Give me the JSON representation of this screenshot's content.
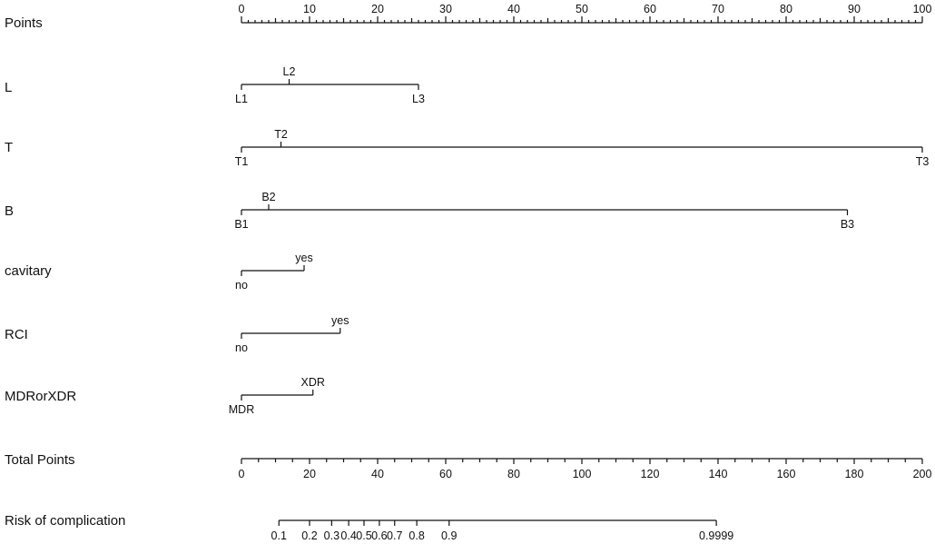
{
  "chart_data": {
    "type": "nomogram",
    "points_axis": {
      "label": "Points",
      "min": 0,
      "max": 100,
      "major_ticks": [
        0,
        10,
        20,
        30,
        40,
        50,
        60,
        70,
        80,
        90,
        100
      ],
      "minor_step": 1
    },
    "variables": [
      {
        "label": "L",
        "levels": [
          {
            "name": "L1",
            "points": 0
          },
          {
            "name": "L2",
            "points": 7
          },
          {
            "name": "L3",
            "points": 26
          }
        ]
      },
      {
        "label": "T",
        "levels": [
          {
            "name": "T1",
            "points": 0
          },
          {
            "name": "T2",
            "points": 5.8
          },
          {
            "name": "T3",
            "points": 100
          }
        ]
      },
      {
        "label": "B",
        "levels": [
          {
            "name": "B1",
            "points": 0
          },
          {
            "name": "B2",
            "points": 4
          },
          {
            "name": "B3",
            "points": 89
          }
        ]
      },
      {
        "label": "cavitary",
        "levels": [
          {
            "name": "no",
            "points": 0
          },
          {
            "name": "yes",
            "points": 9.2
          }
        ]
      },
      {
        "label": "RCI",
        "levels": [
          {
            "name": "no",
            "points": 0
          },
          {
            "name": "yes",
            "points": 14.5
          }
        ]
      },
      {
        "label": "MDRorXDR",
        "levels": [
          {
            "name": "MDR",
            "points": 0
          },
          {
            "name": "XDR",
            "points": 10.5
          }
        ]
      }
    ],
    "total_points_axis": {
      "label": "Total Points",
      "min": 0,
      "max": 200,
      "major_ticks": [
        0,
        20,
        40,
        60,
        80,
        100,
        120,
        140,
        160,
        180,
        200
      ],
      "minor_step": 5
    },
    "risk_axis": {
      "label": "Risk of complication",
      "ticks": [
        {
          "label": "0.1",
          "total_points": 11
        },
        {
          "label": "0.2",
          "total_points": 20
        },
        {
          "label": "0.3",
          "total_points": 26.5
        },
        {
          "label": "0.4",
          "total_points": 31.5
        },
        {
          "label": "0.5",
          "total_points": 36
        },
        {
          "label": "0.6",
          "total_points": 40.5
        },
        {
          "label": "0.7",
          "total_points": 45
        },
        {
          "label": "0.8",
          "total_points": 51.5
        },
        {
          "label": "0.9",
          "total_points": 61
        },
        {
          "label": "0.9999",
          "total_points": 139.5
        }
      ]
    }
  }
}
